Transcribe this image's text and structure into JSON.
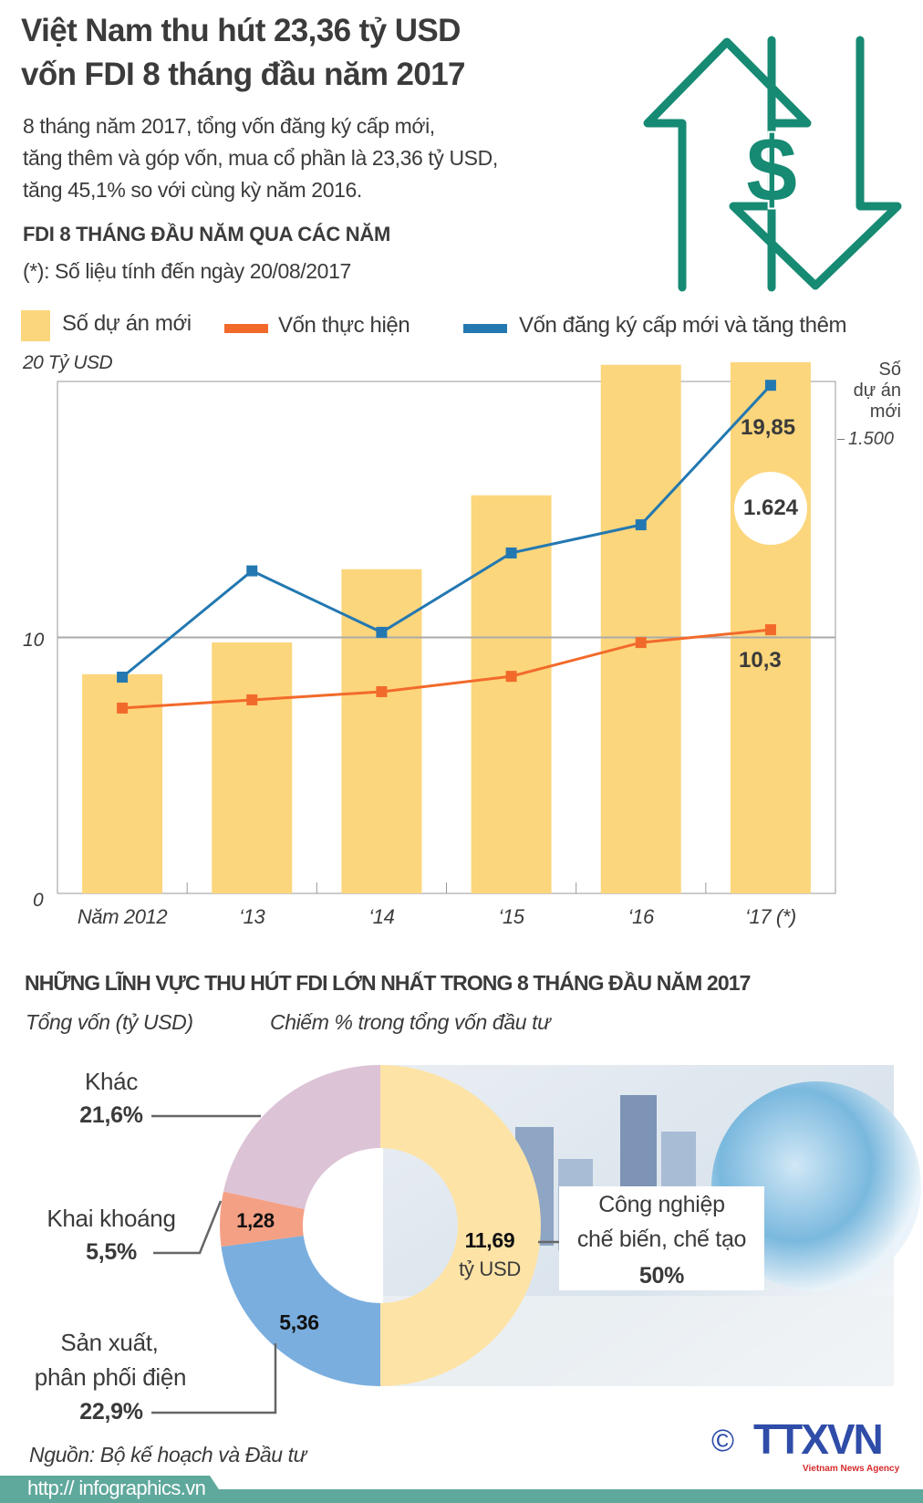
{
  "header": {
    "title_line1": "Việt Nam thu hút 23,36 tỷ USD",
    "title_line2": "vốn FDI 8 tháng đầu năm 2017",
    "summary": [
      "8 tháng năm 2017, tổng vốn đăng ký cấp mới,",
      "tăng thêm và góp vốn, mua cổ phần là 23,36 tỷ USD,",
      "tăng 45,1% so với cùng kỳ năm 2016."
    ],
    "icon": "dollar-up-down-arrows-icon",
    "icon_color": "#168a73"
  },
  "chart_data": [
    {
      "type": "bar+line",
      "title": "FDI 8 THÁNG ĐẦU NĂM QUA CÁC NĂM",
      "note": "(*): Số liệu tính đến ngày 20/08/2017",
      "categories": [
        "Năm 2012",
        "‘13",
        "‘14",
        "‘15",
        "‘16",
        "‘17 (*)"
      ],
      "ylabel": "20 Tỷ USD",
      "y_ticks": [
        "0",
        "10"
      ],
      "ylim": [
        0,
        20
      ],
      "y2label": [
        "Số",
        "dự án",
        "mới"
      ],
      "y2_tick": "1.500",
      "grid": "horizontal at 10 and 20",
      "legend_position": "top",
      "series": [
        {
          "name": "Số dự án mới",
          "kind": "bar",
          "axis": "right",
          "color": "#fcd67c",
          "values": [
            670,
            767,
            991,
            1217,
            1616,
            1624
          ]
        },
        {
          "name": "Vốn thực hiện",
          "kind": "line",
          "axis": "left",
          "color": "#f26a2b",
          "values": [
            7.24,
            7.56,
            7.88,
            8.48,
            9.8,
            10.3
          ]
        },
        {
          "name": "Vốn đăng ký cấp mới và tăng thêm",
          "kind": "line",
          "axis": "left",
          "color": "#2378b1",
          "values": [
            8.45,
            12.6,
            10.2,
            13.3,
            14.4,
            19.85
          ]
        }
      ],
      "data_labels": {
        "blue_last": "19,85",
        "orange_last": "10,3",
        "bar_last": "1.624"
      }
    },
    {
      "type": "pie",
      "title": "NHỮNG LĨNH VỰC THU HÚT FDI LỚN NHẤT TRONG 8 THÁNG ĐẦU NĂM 2017",
      "subtitle_left": "Tổng vốn (tỷ USD)",
      "subtitle_right": "Chiếm % trong tổng vốn đầu tư",
      "donut": true,
      "slices": [
        {
          "name": "Công nghiệp chế biến, chế tạo",
          "name_lines": [
            "Công nghiệp",
            "chế biến, chế tạo"
          ],
          "percent": 50,
          "percent_label": "50%",
          "value_label": "11,69",
          "unit": "tỷ USD",
          "color": "#fde3a6"
        },
        {
          "name": "Sản xuất, phân phối điện",
          "name_lines": [
            "Sản xuất,",
            "phân phối điện"
          ],
          "percent": 22.9,
          "percent_label": "22,9%",
          "value_label": "5,36",
          "color": "#7aaede"
        },
        {
          "name": "Khai khoáng",
          "name_lines": [
            "Khai khoáng"
          ],
          "percent": 5.5,
          "percent_label": "5,5%",
          "value_label": "1,28",
          "color": "#f4a084"
        },
        {
          "name": "Khác",
          "name_lines": [
            "Khác"
          ],
          "percent": 21.6,
          "percent_label": "21,6%",
          "color": "#dcc3d6"
        }
      ]
    }
  ],
  "footer": {
    "source": "Nguồn: Bộ kế hoạch và Đầu tư",
    "copyright": "©",
    "logo_text": "TTXVN",
    "logo_subtext": "Vietnam News Agency",
    "url": "http:// infographics.vn",
    "footer_color": "#5fa89c"
  }
}
